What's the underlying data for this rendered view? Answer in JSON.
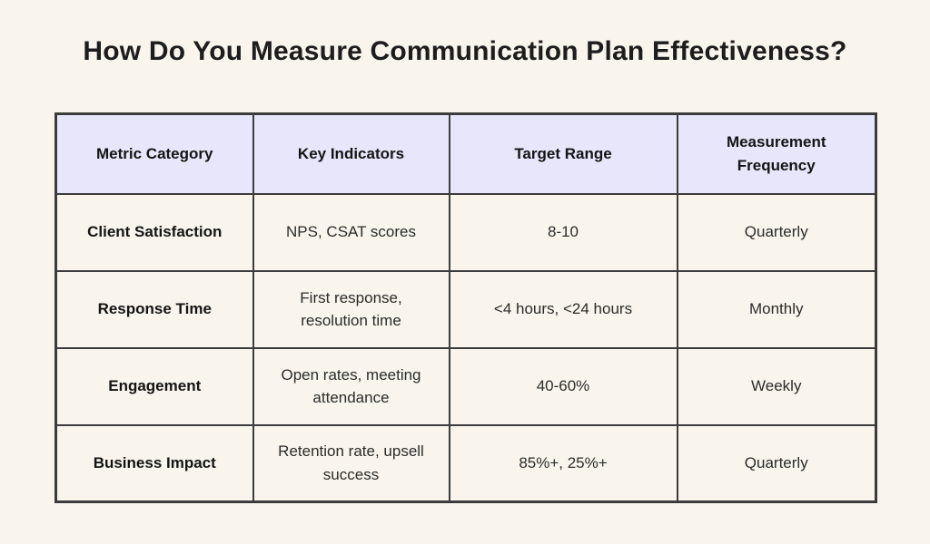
{
  "page": {
    "title": "How Do You Measure Communication Plan Effectiveness?",
    "background_color": "#f9f5ec",
    "header_color": "#e8e6fb",
    "border_color": "#3c3c3c"
  },
  "chart_data": {
    "type": "table",
    "title": "How Do You Measure Communication Plan Effectiveness?",
    "columns": [
      "Metric Category",
      "Key Indicators",
      "Target Range",
      "Measurement Frequency"
    ],
    "rows": [
      {
        "category": "Client Satisfaction",
        "indicators": "NPS, CSAT scores",
        "target": "8-10",
        "frequency": "Quarterly"
      },
      {
        "category": "Response Time",
        "indicators": "First response, resolution time",
        "target": "<4 hours, <24 hours",
        "frequency": "Monthly"
      },
      {
        "category": "Engagement",
        "indicators": "Open rates, meeting attendance",
        "target": "40-60%",
        "frequency": "Weekly"
      },
      {
        "category": "Business Impact",
        "indicators": "Retention rate, upsell success",
        "target": "85%+, 25%+",
        "frequency": "Quarterly"
      }
    ]
  }
}
